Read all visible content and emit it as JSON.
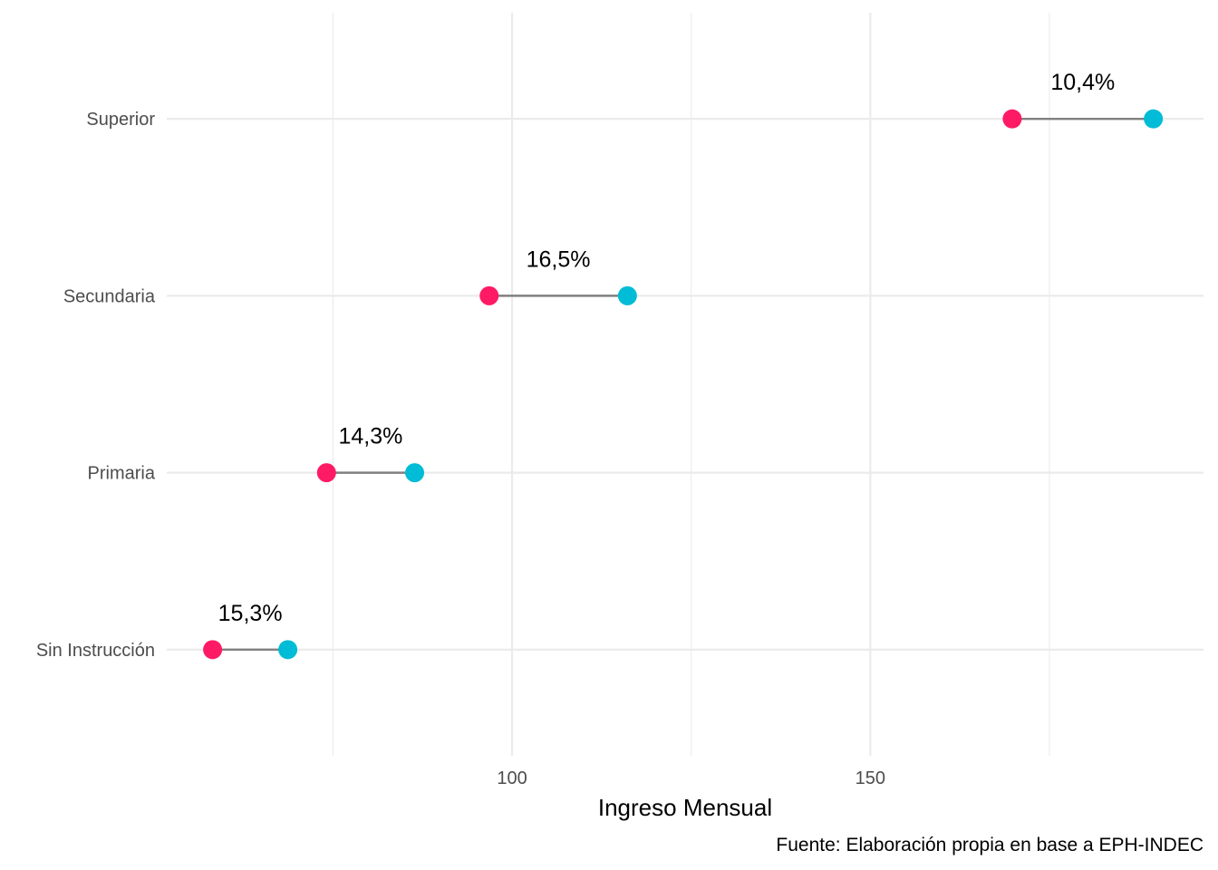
{
  "chart_data": {
    "type": "dumbbell",
    "xlabel": "Ingreso Mensual",
    "ylabel": "",
    "caption": "Fuente: Elaboración propia en base a EPH-INDEC",
    "xlim": [
      51.8,
      196.5
    ],
    "x_ticks": [
      100,
      150
    ],
    "x_minor_ticks": [
      75,
      125,
      175
    ],
    "categories": [
      "Sin Instrucción",
      "Primaria",
      "Secundaria",
      "Superior"
    ],
    "series": [
      {
        "color": "#ff1a66",
        "values": [
          58.2,
          74.1,
          96.8,
          169.8
        ]
      },
      {
        "color": "#00bcd6",
        "values": [
          68.7,
          86.4,
          116.1,
          189.5
        ]
      }
    ],
    "labels": [
      "15,3%",
      "14,3%",
      "16,5%",
      "10,4%"
    ],
    "grid": true
  }
}
